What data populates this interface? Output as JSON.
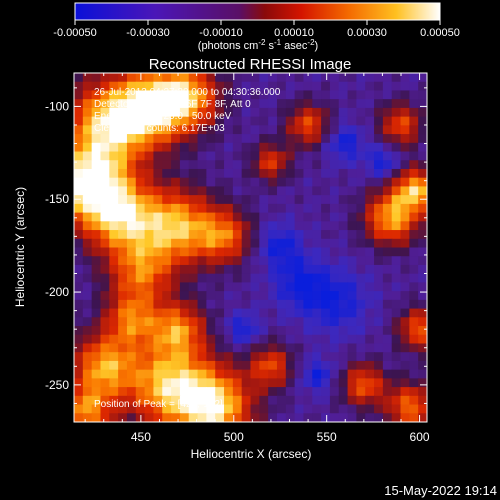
{
  "colorbar": {
    "ticks": [
      "-0.00050",
      "-0.00030",
      "-0.00010",
      "0.00010",
      "0.00030",
      "0.00050"
    ],
    "range": [
      -0.0005,
      0.0005
    ],
    "unit_prefix": "(photons cm",
    "exp1": "-2",
    "unit_mid": " s",
    "exp2": "-1",
    "unit_mid2": " asec",
    "exp3": "-2",
    "unit_suffix": ")"
  },
  "chart_data": {
    "type": "heatmap",
    "title": "Reconstructed RHESSI Image",
    "xlabel": "Heliocentric X (arcsec)",
    "ylabel": "Heliocentric Y (arcsec)",
    "xlim": [
      414,
      604
    ],
    "ylim": [
      -270,
      -82
    ],
    "xticks": [
      450,
      500,
      550,
      600
    ],
    "yticks": [
      -100,
      -150,
      -200,
      -250
    ],
    "peak": [
      422,
      -142
    ],
    "annotations": [
      "26-Jul-2013 04:27:20.000 to 04:30:36.000",
      "Detectors: 3F 4F 5F 6F 7F 8F, Att 0",
      "Energy Range: 25.0 - 50.0 keV",
      "Clean    Total counts: 6.17E+03",
      "Position of Peak = [422,-142]"
    ],
    "hot_regions": [
      {
        "x": 422,
        "y": -142,
        "r": 14,
        "level": 1.0
      },
      {
        "x": 432,
        "y": -110,
        "r": 16,
        "level": 0.85
      },
      {
        "x": 455,
        "y": -100,
        "r": 14,
        "level": 0.85
      },
      {
        "x": 475,
        "y": -95,
        "r": 12,
        "level": 0.75
      },
      {
        "x": 440,
        "y": -160,
        "r": 14,
        "level": 0.8
      },
      {
        "x": 470,
        "y": -165,
        "r": 14,
        "level": 0.8
      },
      {
        "x": 495,
        "y": -170,
        "r": 10,
        "level": 0.6
      },
      {
        "x": 450,
        "y": -190,
        "r": 12,
        "level": 0.6
      },
      {
        "x": 445,
        "y": -215,
        "r": 10,
        "level": 0.6
      },
      {
        "x": 470,
        "y": -220,
        "r": 10,
        "level": 0.65
      },
      {
        "x": 430,
        "y": -240,
        "r": 12,
        "level": 0.75
      },
      {
        "x": 465,
        "y": -250,
        "r": 16,
        "level": 0.85
      },
      {
        "x": 490,
        "y": -262,
        "r": 14,
        "level": 0.9
      },
      {
        "x": 420,
        "y": -265,
        "r": 10,
        "level": 0.7
      },
      {
        "x": 520,
        "y": -240,
        "r": 8,
        "level": 0.55
      },
      {
        "x": 540,
        "y": -110,
        "r": 8,
        "level": 0.55
      },
      {
        "x": 520,
        "y": -130,
        "r": 7,
        "level": 0.5
      },
      {
        "x": 585,
        "y": -160,
        "r": 10,
        "level": 0.8
      },
      {
        "x": 598,
        "y": -145,
        "r": 8,
        "level": 0.8
      },
      {
        "x": 600,
        "y": -220,
        "r": 8,
        "level": 0.6
      },
      {
        "x": 570,
        "y": -250,
        "r": 8,
        "level": 0.6
      },
      {
        "x": 595,
        "y": -262,
        "r": 9,
        "level": 0.65
      },
      {
        "x": 590,
        "y": -110,
        "r": 8,
        "level": 0.55
      }
    ],
    "cold_regions": [
      {
        "x": 555,
        "y": -205,
        "r": 12
      },
      {
        "x": 535,
        "y": -195,
        "r": 10
      },
      {
        "x": 525,
        "y": -175,
        "r": 8
      },
      {
        "x": 560,
        "y": -120,
        "r": 7
      },
      {
        "x": 580,
        "y": -130,
        "r": 6
      },
      {
        "x": 545,
        "y": -245,
        "r": 6
      },
      {
        "x": 505,
        "y": -220,
        "r": 6
      }
    ]
  },
  "footer": {
    "timestamp": "15-May-2022 19:14"
  }
}
